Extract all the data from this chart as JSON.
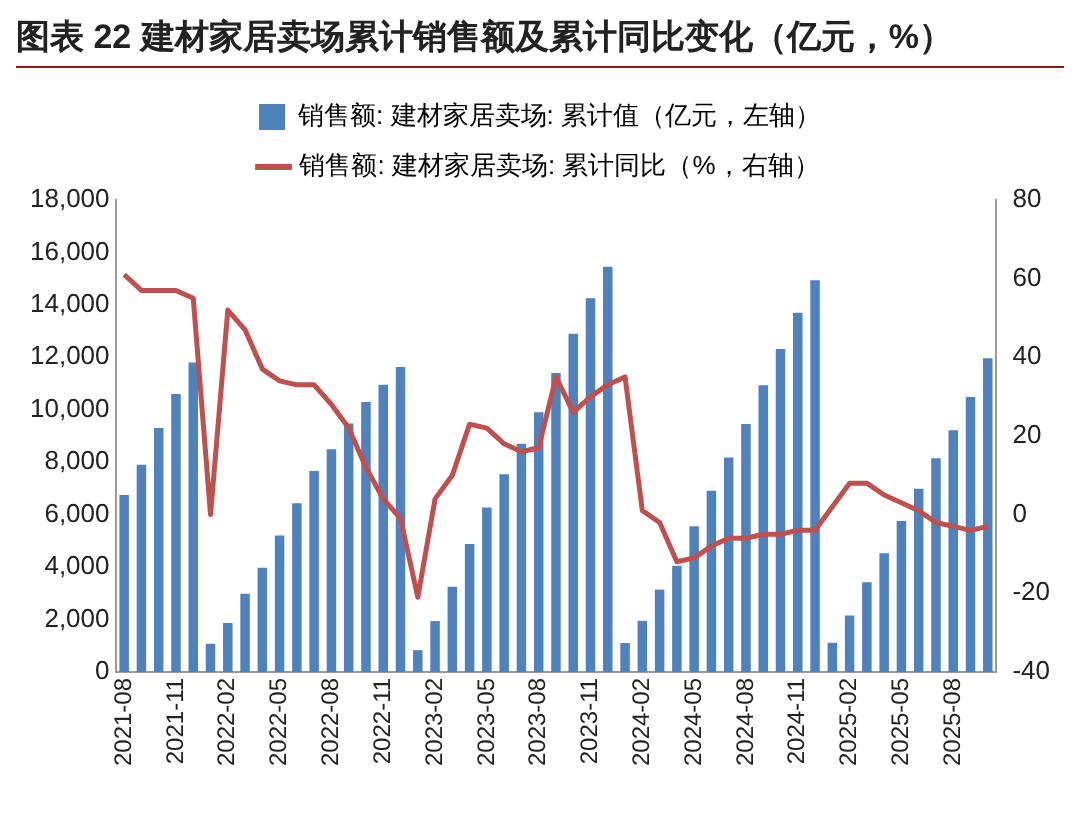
{
  "chart_data": {
    "type": "bar",
    "title": "图表 22 建材家居卖场累计销售额及累计同比变化（亿元，%）",
    "categories": [
      "2021-08",
      null,
      null,
      "2021-11",
      null,
      null,
      "2022-02",
      null,
      null,
      "2022-05",
      null,
      null,
      "2022-08",
      null,
      null,
      "2022-11",
      null,
      null,
      "2023-02",
      null,
      null,
      "2023-05",
      null,
      null,
      "2023-08",
      null,
      null,
      "2023-11",
      null,
      null,
      "2024-02",
      null,
      null,
      "2024-05",
      null,
      null,
      "2024-08",
      null,
      null,
      "2024-11",
      null,
      null,
      "2025-02",
      null,
      null,
      "2025-05",
      null,
      null,
      "2025-08",
      null,
      null
    ],
    "series": [
      {
        "name": "销售额: 建材家居卖场: 累计值（亿元，左轴）",
        "color": "#4f81bd",
        "values": [
          6750,
          7900,
          9300,
          10600,
          11800,
          1070,
          1870,
          2980,
          3970,
          5200,
          6430,
          7660,
          8490,
          9480,
          10300,
          10950,
          11630,
          830,
          1940,
          3250,
          4880,
          6270,
          7540,
          8700,
          9900,
          11400,
          12900,
          14250,
          15450,
          1100,
          1950,
          3140,
          4050,
          5560,
          6910,
          8180,
          9460,
          10930,
          12320,
          13700,
          14940,
          1110,
          2150,
          3420,
          4530,
          5760,
          6990,
          8150,
          9220,
          10490,
          11960
        ]
      },
      {
        "name": "销售额: 建材家居卖场: 累计同比（%，右轴）",
        "type": "line",
        "axis": "y2",
        "color": "#c0504d",
        "values": [
          61,
          57,
          57,
          57,
          55,
          0,
          52,
          47,
          37,
          34,
          33,
          33,
          28,
          22,
          12,
          4,
          -1,
          -21,
          4,
          10,
          23,
          22,
          18,
          16,
          17,
          35,
          26,
          30,
          33,
          35,
          1,
          -2,
          -12,
          -11,
          -8,
          -6,
          -6,
          -5,
          -5,
          -4,
          -4,
          2,
          8,
          8,
          5,
          3,
          1,
          -2,
          -3,
          -4,
          -3
        ]
      }
    ],
    "ylim": [
      0,
      18000
    ],
    "yticks": [
      0,
      {
        "value": 2000,
        "label": "2,000"
      },
      {
        "value": 4000,
        "label": "4,000"
      },
      {
        "value": 6000,
        "label": "6,000"
      },
      {
        "value": 8000,
        "label": "8,000"
      },
      {
        "value": 10000,
        "label": "10,000"
      },
      {
        "value": 12000,
        "label": "12,000"
      },
      {
        "value": 14000,
        "label": "14,000"
      },
      {
        "value": 16000,
        "label": "16,000"
      },
      {
        "value": 18000,
        "label": "18,000"
      }
    ],
    "y2lim": [
      -40,
      80
    ],
    "y2ticks": [
      -40,
      -20,
      0,
      20,
      40,
      60,
      80
    ],
    "legend": "top",
    "grid": false
  }
}
